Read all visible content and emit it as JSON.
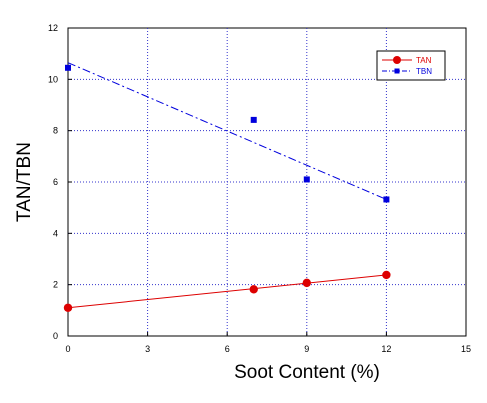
{
  "chart_data": {
    "type": "scatter",
    "xlabel": "Soot Content (%)",
    "ylabel": "TAN/TBN",
    "xlim": [
      0,
      15
    ],
    "ylim": [
      0,
      12
    ],
    "xticks": [
      0,
      3,
      6,
      9,
      12,
      15
    ],
    "yticks": [
      0,
      2,
      4,
      6,
      8,
      10,
      12
    ],
    "grid": true,
    "legend_position": "top-right",
    "series": [
      {
        "name": "TAN",
        "color": "#dd0000",
        "marker": "circle",
        "line": "solid",
        "points": [
          [
            0,
            1.1
          ],
          [
            7,
            1.82
          ],
          [
            9,
            2.07
          ],
          [
            12,
            2.38
          ]
        ],
        "trend": [
          [
            0,
            1.1
          ],
          [
            12,
            2.38
          ]
        ]
      },
      {
        "name": "TBN",
        "color": "#0000dd",
        "marker": "square",
        "line": "dashdot",
        "points": [
          [
            0,
            10.45
          ],
          [
            7,
            8.42
          ],
          [
            9,
            6.1
          ],
          [
            12,
            5.32
          ]
        ],
        "trend": [
          [
            0,
            10.65
          ],
          [
            12,
            5.32
          ]
        ]
      }
    ]
  }
}
